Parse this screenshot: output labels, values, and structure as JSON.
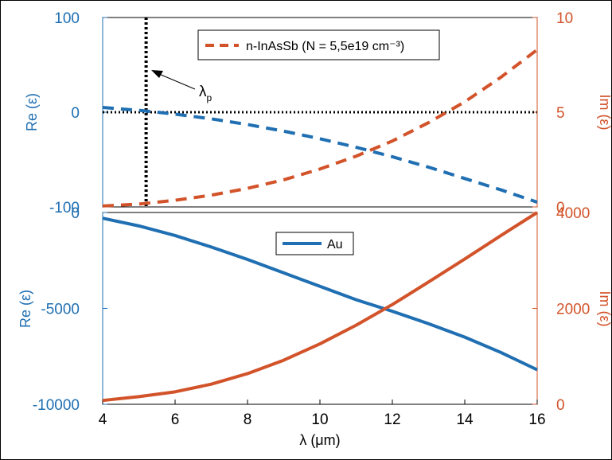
{
  "colors": {
    "blue": "#1f6fb2",
    "orange": "#d2532a",
    "black": "#000000",
    "axis_text": "#000000"
  },
  "chart_data": [
    {
      "type": "line",
      "panel": "top",
      "xlim": [
        4,
        16
      ],
      "ylim_left": [
        -100,
        100
      ],
      "ylim_right": [
        0,
        10
      ],
      "left_ticks": [
        "100",
        "0",
        "-100"
      ],
      "left_tick_values": [
        100,
        0,
        -100
      ],
      "right_ticks": [
        "10",
        "5",
        "0"
      ],
      "right_tick_values": [
        10,
        5,
        0
      ],
      "ylabel_left": "Re (ε)",
      "ylabel_right": "Im (ε)",
      "legend": "n-InAsSb (N = 5,5e19 cm⁻³)",
      "legend_position": "top-center",
      "annotation": {
        "label": "λ",
        "subscript": "p"
      },
      "series": [
        {
          "name": "n-InAsSb (N = 5,5e19 cm⁻³)",
          "axis": "left",
          "style": "dashed",
          "color": "blue",
          "x": [
            4,
            5,
            6,
            7,
            8,
            9,
            10,
            11,
            12,
            13,
            14,
            15,
            16
          ],
          "y": [
            5,
            2,
            -2,
            -7,
            -13,
            -20,
            -28,
            -37,
            -47,
            -58,
            -70,
            -82,
            -95
          ]
        },
        {
          "axis": "right",
          "style": "dashed",
          "color": "orange",
          "x": [
            4,
            5,
            6,
            7,
            8,
            9,
            10,
            11,
            12,
            13,
            14,
            15,
            16
          ],
          "y": [
            0.05,
            0.15,
            0.35,
            0.62,
            0.98,
            1.43,
            2.0,
            2.68,
            3.48,
            4.45,
            5.55,
            6.85,
            8.3
          ]
        }
      ],
      "reference_lines": {
        "horizontal_zero_left": 0,
        "vertical_x": 5.2
      }
    },
    {
      "type": "line",
      "panel": "bottom",
      "xlim": [
        4,
        16
      ],
      "ylim_left": [
        -10000,
        0
      ],
      "ylim_right": [
        0,
        4000
      ],
      "left_ticks": [
        "0",
        "-5000",
        "-10000"
      ],
      "left_tick_values": [
        0,
        -5000,
        -10000
      ],
      "right_ticks": [
        "4000",
        "2000",
        "0"
      ],
      "right_tick_values": [
        4000,
        2000,
        0
      ],
      "x_ticks": [
        "4",
        "6",
        "8",
        "10",
        "12",
        "14",
        "16"
      ],
      "x_tick_values": [
        4,
        6,
        8,
        10,
        12,
        14,
        16
      ],
      "xlabel": "λ (μm)",
      "ylabel_left": "Re (ε)",
      "ylabel_right": "Im (ε)",
      "legend": "Au",
      "legend_position": "top-center",
      "series": [
        {
          "name": "Au",
          "axis": "left",
          "style": "solid",
          "color": "blue",
          "x": [
            4,
            5,
            6,
            7,
            8,
            9,
            10,
            11,
            12,
            13,
            14,
            15,
            16
          ],
          "y": [
            -300,
            -700,
            -1200,
            -1800,
            -2450,
            -3150,
            -3850,
            -4550,
            -5150,
            -5800,
            -6500,
            -7300,
            -8200
          ]
        },
        {
          "axis": "right",
          "style": "solid",
          "color": "orange",
          "x": [
            4,
            5,
            6,
            7,
            8,
            9,
            10,
            11,
            12,
            13,
            14,
            15,
            16
          ],
          "y": [
            80,
            160,
            260,
            420,
            640,
            920,
            1260,
            1650,
            2080,
            2550,
            3030,
            3520,
            4000
          ]
        }
      ]
    }
  ]
}
